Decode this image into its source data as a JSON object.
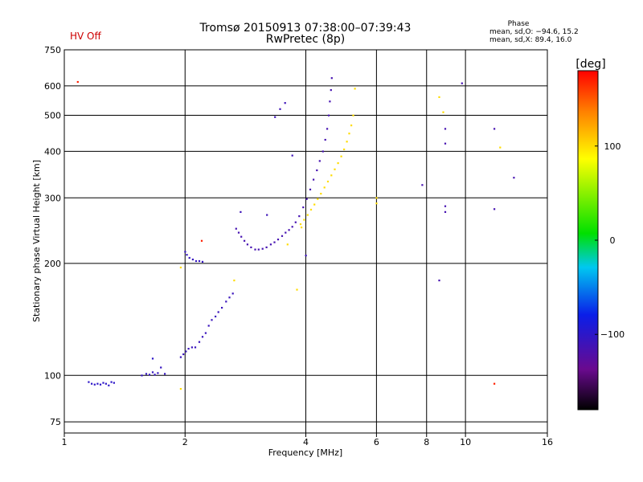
{
  "hv_status": "HV Off",
  "phase_box": {
    "title": "Phase",
    "line1": "mean, sd,O: −94.6, 15.2",
    "line2": "mean, sd,X:  89.4, 16.0"
  },
  "colorbar": {
    "unit_label": "[deg]",
    "range": [
      -180,
      180
    ],
    "ticks": [
      "100",
      "0",
      "−100"
    ],
    "tick_values": [
      100,
      0,
      -100
    ]
  },
  "chart_data": {
    "type": "scatter",
    "title": "Tromsø 20150913 07:38:00–07:39:43",
    "subtitle": "RwPretec (8p)",
    "xlabel": "Frequency [MHz]",
    "ylabel": "Stationary phase Virtual Height [km]",
    "x_scale": "log",
    "y_scale": "log",
    "xlim": [
      1,
      16
    ],
    "ylim": [
      70,
      750
    ],
    "x_ticks": [
      1,
      2,
      4,
      6,
      8,
      10,
      16
    ],
    "y_ticks": [
      75,
      100,
      200,
      300,
      400,
      500,
      600,
      750
    ],
    "grid": true,
    "color_encoding": "phase [deg]",
    "traces": [
      {
        "points": [
          [
            1.15,
            96
          ],
          [
            1.17,
            95
          ],
          [
            1.19,
            94.5
          ],
          [
            1.21,
            95
          ],
          [
            1.23,
            94.5
          ],
          [
            1.25,
            95.5
          ],
          [
            1.27,
            95
          ],
          [
            1.29,
            94
          ],
          [
            1.31,
            96
          ],
          [
            1.33,
            95.5
          ]
        ],
        "phase": -100
      },
      {
        "points": [
          [
            1.56,
            100
          ],
          [
            1.6,
            101
          ],
          [
            1.63,
            100.5
          ],
          [
            1.66,
            102
          ],
          [
            1.68,
            100.5
          ],
          [
            1.71,
            101.5
          ],
          [
            1.74,
            105
          ],
          [
            1.78,
            101
          ]
        ],
        "phase": -105
      },
      {
        "points": [
          [
            1.66,
            111
          ]
        ],
        "phase": -100
      },
      {
        "points": [
          [
            1.95,
            112
          ],
          [
            1.98,
            114
          ],
          [
            2.01,
            116
          ],
          [
            2.04,
            118
          ],
          [
            2.08,
            119
          ],
          [
            2.12,
            119
          ],
          [
            2.17,
            123
          ],
          [
            2.21,
            127
          ],
          [
            2.25,
            130
          ],
          [
            2.29,
            136
          ],
          [
            2.33,
            141
          ],
          [
            2.38,
            144
          ],
          [
            2.42,
            148
          ],
          [
            2.47,
            152
          ],
          [
            2.53,
            158
          ],
          [
            2.58,
            162
          ],
          [
            2.63,
            166
          ]
        ],
        "phase": -108
      },
      {
        "points": [
          [
            2.0,
            215
          ],
          [
            2.02,
            211
          ],
          [
            2.05,
            207
          ],
          [
            2.09,
            205
          ],
          [
            2.13,
            203
          ],
          [
            2.17,
            203
          ],
          [
            2.21,
            202
          ]
        ],
        "phase": -105
      },
      {
        "points": [
          [
            2.68,
            248
          ],
          [
            2.72,
            242
          ],
          [
            2.76,
            236
          ],
          [
            2.81,
            230
          ],
          [
            2.86,
            225
          ],
          [
            2.92,
            221
          ],
          [
            2.99,
            218
          ],
          [
            3.05,
            218
          ],
          [
            3.12,
            219
          ],
          [
            3.19,
            221
          ],
          [
            3.27,
            225
          ],
          [
            3.34,
            228
          ],
          [
            3.41,
            232
          ],
          [
            3.49,
            237
          ],
          [
            3.56,
            242
          ],
          [
            3.63,
            246
          ],
          [
            3.7,
            251
          ],
          [
            3.77,
            258
          ],
          [
            3.85,
            268
          ],
          [
            3.94,
            283
          ],
          [
            4.02,
            298
          ],
          [
            4.1,
            316
          ],
          [
            4.18,
            336
          ],
          [
            4.26,
            356
          ],
          [
            4.33,
            377
          ],
          [
            4.41,
            400
          ],
          [
            4.47,
            430
          ],
          [
            4.52,
            460
          ],
          [
            4.56,
            500
          ],
          [
            4.59,
            545
          ],
          [
            4.62,
            585
          ],
          [
            4.64,
            630
          ]
        ],
        "phase": -115
      },
      {
        "points": [
          [
            3.88,
            255
          ],
          [
            3.96,
            262
          ],
          [
            4.04,
            270
          ],
          [
            4.12,
            279
          ],
          [
            4.2,
            288
          ],
          [
            4.28,
            298
          ],
          [
            4.36,
            308
          ],
          [
            4.45,
            320
          ],
          [
            4.54,
            332
          ],
          [
            4.63,
            345
          ],
          [
            4.72,
            358
          ],
          [
            4.81,
            372
          ],
          [
            4.9,
            388
          ],
          [
            4.98,
            405
          ],
          [
            5.06,
            425
          ],
          [
            5.13,
            447
          ],
          [
            5.19,
            470
          ],
          [
            5.25,
            500
          ]
        ],
        "phase": 100
      },
      {
        "points": [
          [
            2.75,
            275
          ],
          [
            3.2,
            270
          ],
          [
            3.35,
            495
          ],
          [
            3.45,
            520
          ],
          [
            3.55,
            540
          ],
          [
            3.7,
            390
          ],
          [
            4.0,
            210
          ]
        ],
        "phase": -110
      },
      {
        "points": [
          [
            9.8,
            610
          ],
          [
            8.9,
            460
          ],
          [
            8.9,
            420
          ],
          [
            8.9,
            285
          ],
          [
            8.9,
            275
          ],
          [
            7.8,
            325
          ],
          [
            8.6,
            180
          ],
          [
            11.8,
            460
          ],
          [
            11.8,
            280
          ],
          [
            13.2,
            340
          ]
        ],
        "phase": -115
      },
      {
        "points": [
          [
            8.6,
            560
          ],
          [
            8.8,
            510
          ],
          [
            5.3,
            590
          ],
          [
            6.0,
            300
          ],
          [
            6.0,
            290
          ],
          [
            12.2,
            410
          ],
          [
            3.9,
            250
          ],
          [
            3.6,
            225
          ],
          [
            3.8,
            170
          ],
          [
            2.65,
            180
          ],
          [
            1.95,
            195
          ],
          [
            1.95,
            92
          ]
        ],
        "phase": 100
      },
      {
        "points": [
          [
            1.08,
            615
          ],
          [
            2.2,
            230
          ],
          [
            11.8,
            95
          ]
        ],
        "phase": 170
      }
    ]
  }
}
